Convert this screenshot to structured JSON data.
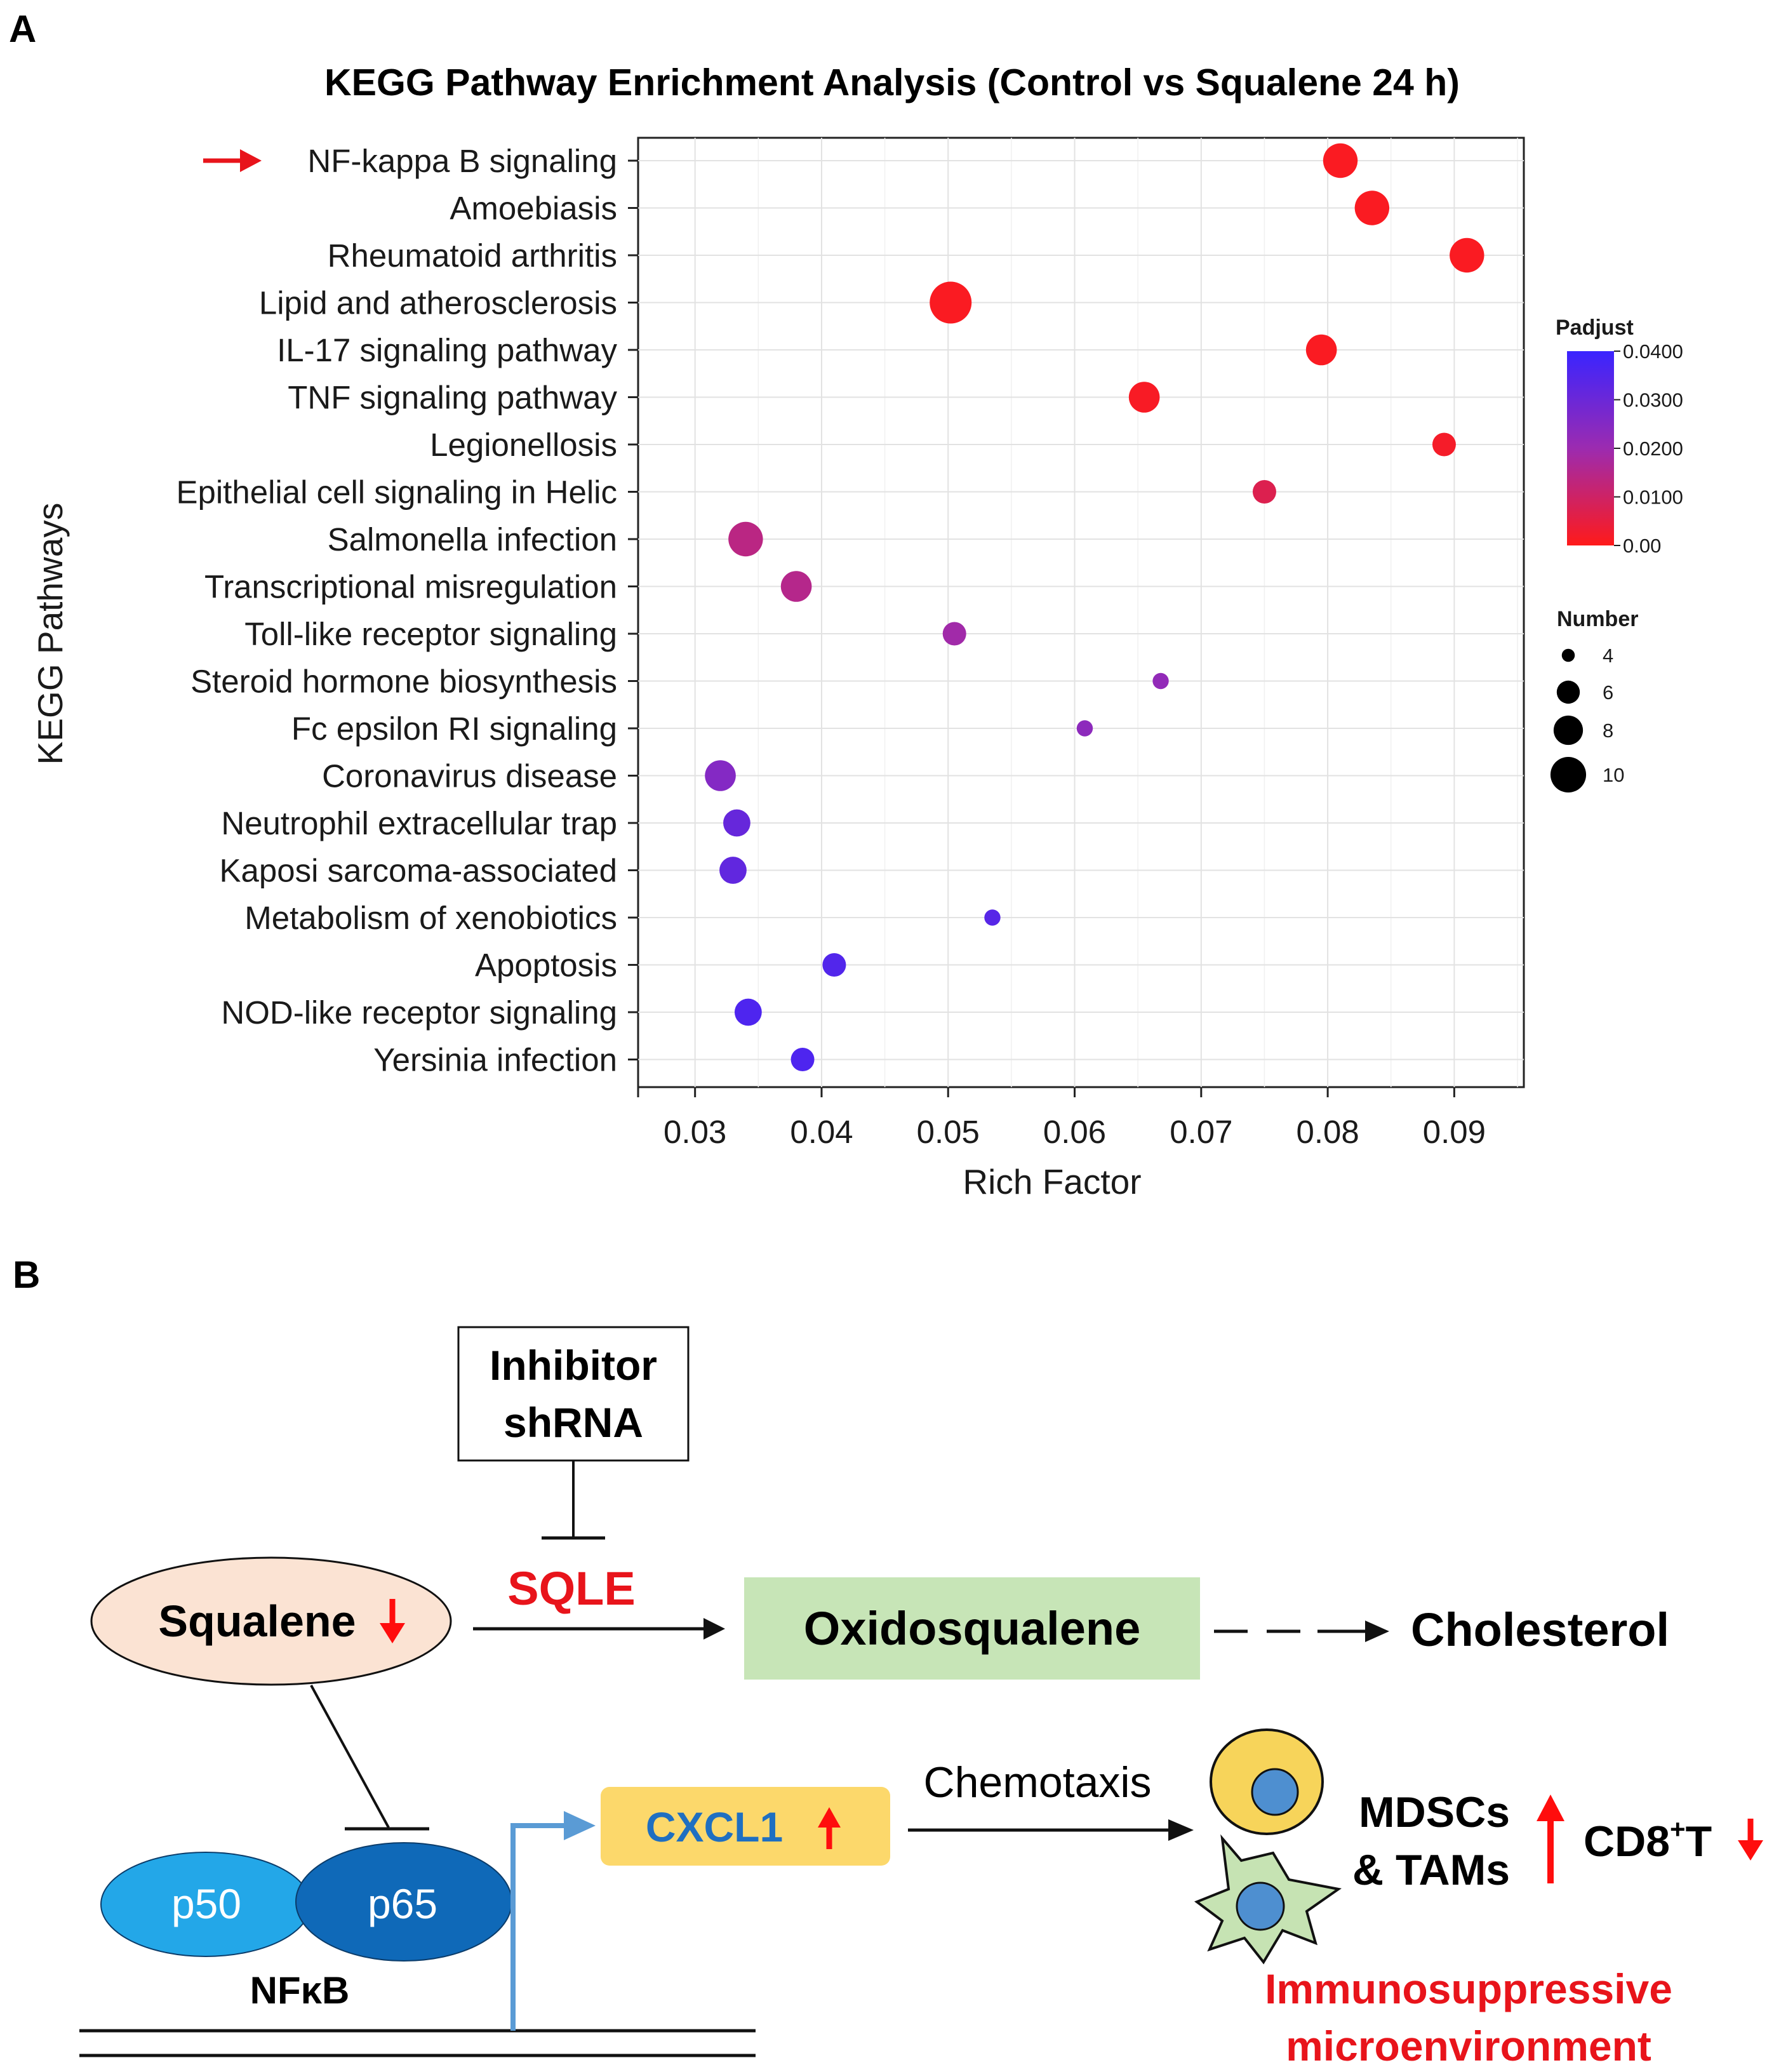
{
  "panel_a": {
    "letter": "A"
  },
  "panel_b": {
    "letter": "B"
  },
  "chart_data": {
    "type": "scatter",
    "title": "KEGG Pathway Enrichment Analysis (Control vs Squalene 24 h)",
    "xlabel": "Rich Factor",
    "ylabel": "KEGG Pathways",
    "xlim": [
      0.0255,
      0.0955
    ],
    "xticks": [
      "0.03",
      "0.04",
      "0.05",
      "0.06",
      "0.07",
      "0.08",
      "0.09"
    ],
    "grid": true,
    "highlight_arrow_on": "NF-kappa B signaling",
    "categories": [
      "NF-kappa B signaling",
      "Amoebiasis",
      "Rheumatoid arthritis",
      "Lipid and atherosclerosis",
      "IL-17 signaling pathway",
      "TNF signaling pathway",
      "Legionellosis",
      "Epithelial cell signaling in Helic",
      "Salmonella infection",
      "Transcriptional misregulation",
      "Toll-like receptor signaling",
      "Steroid hormone biosynthesis",
      "Fc epsilon RI signaling",
      "Coronavirus disease",
      "Neutrophil extracellular trap",
      "Kaposi sarcoma-associated",
      "Metabolism of xenobiotics",
      "Apoptosis",
      "NOD-like receptor signaling",
      "Yersinia infection"
    ],
    "rich_factor": [
      0.081,
      0.0835,
      0.091,
      0.0502,
      0.0795,
      0.0655,
      0.0892,
      0.075,
      0.034,
      0.038,
      0.0505,
      0.0668,
      0.0608,
      0.032,
      0.0333,
      0.033,
      0.0535,
      0.041,
      0.0342,
      0.0385
    ],
    "padjust": [
      0.001,
      0.001,
      0.001,
      0.001,
      0.001,
      0.0015,
      0.002,
      0.007,
      0.014,
      0.015,
      0.019,
      0.022,
      0.023,
      0.025,
      0.031,
      0.032,
      0.034,
      0.035,
      0.036,
      0.036
    ],
    "number": [
      8,
      8,
      8,
      10,
      7,
      7,
      5,
      5,
      8,
      7,
      5,
      3,
      3,
      7,
      6,
      6,
      3,
      5,
      6,
      5
    ],
    "color_legend": {
      "title": "Padjust",
      "ticks": [
        "0.0400",
        "0.0300",
        "0.0200",
        "0.0100",
        "0.00"
      ],
      "min": 0.0,
      "max": 0.04,
      "low_color": "#ff1a1a",
      "high_color": "#3a24ff"
    },
    "size_legend": {
      "title": "Number",
      "ticks": [
        "4",
        "6",
        "8",
        "10"
      ]
    }
  },
  "diagram": {
    "inhibitor_line1": "Inhibitor",
    "inhibitor_line2": "shRNA",
    "sqle": "SQLE",
    "squalene": "Squalene",
    "oxidosqualene": "Oxidosqualene",
    "cholesterol": "Cholesterol",
    "p50": "p50",
    "p65": "p65",
    "nfkb": "NFκB",
    "cxcl1": "CXCL1",
    "chemotaxis": "Chemotaxis",
    "mdscs": "MDSCs",
    "tams": "& TAMs",
    "cd8_main": "CD8",
    "cd8_sup": "+",
    "cd8_t": "T",
    "immuno_line1": "Immunosuppressive",
    "immuno_line2": "microenvironment",
    "colors": {
      "red": "#ff0d0d",
      "sqle_red": "#e8141b",
      "squalene_fill": "#fbe3d3",
      "oxido_fill": "#c7e5b7",
      "cxcl1_fill": "#fcd86b",
      "cxcl1_text": "#1f6fc1",
      "p50_fill": "#23a7e8",
      "p65_fill": "#0f69b8",
      "blue_arrow": "#5a9bd5",
      "cell_yellow": "#f7d45a",
      "cell_nucleus": "#4e8fd0",
      "cell_green": "#c6e3b3",
      "immuno_red": "#e8141b"
    }
  }
}
